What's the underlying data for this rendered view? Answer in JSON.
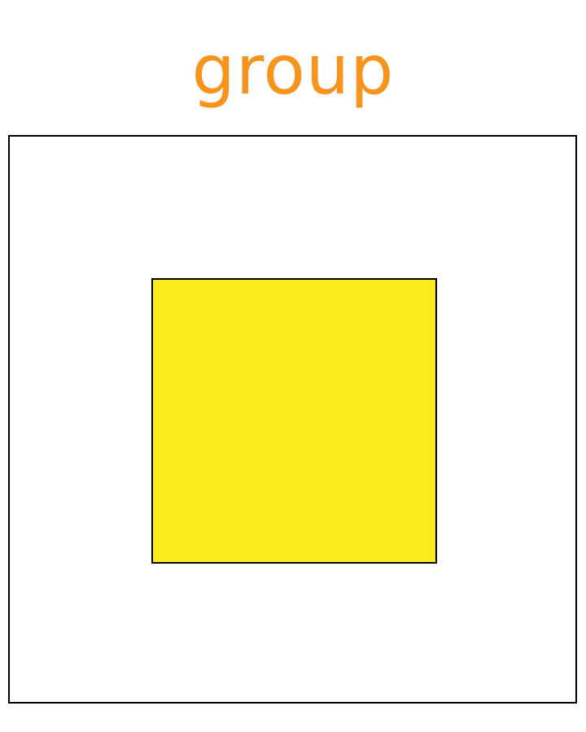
{
  "title": {
    "text": "group",
    "color": "#F7941D"
  },
  "group": {
    "border_color": "#000000",
    "background": "#FFFFFF"
  },
  "shape": {
    "kind": "square",
    "fill": "#FCEB1E",
    "stroke": "#000000"
  }
}
